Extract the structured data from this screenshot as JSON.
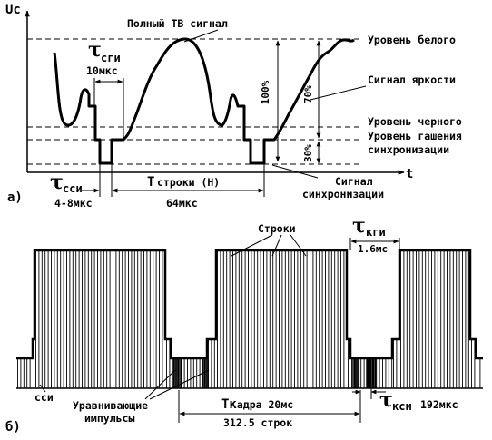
{
  "panel_a": {
    "marker": "а)",
    "axis_y": "Uc",
    "axis_x": "t",
    "title": "Полный ТВ сигнал",
    "level_white": "Уровень белого",
    "brightness_signal": "Сигнал яркости",
    "level_black": "Уровень черного",
    "level_blanking_1": "Уровень гашения",
    "level_blanking_2": "синхронизации",
    "sync_signal_1": "Сигнал",
    "sync_signal_2": "синхронизации",
    "pct_100": "100%",
    "pct_70": "70%",
    "pct_30": "30%",
    "tau_sgi": "τ",
    "tau_sgi_sub": "сги",
    "tau_sgi_value": "10мкс",
    "tau_ssi": "τ",
    "tau_ssi_sub": "сси",
    "tau_ssi_value": "4-8мкс",
    "t_line": "Т",
    "t_line_sub": "строки (Н)",
    "t_line_value": "64мкс"
  },
  "panel_b": {
    "marker": "б)",
    "lines_label": "Строки",
    "tau_kgi": "τ",
    "tau_kgi_sub": "кги",
    "tau_kgi_value": "1.6мс",
    "ssi_label": "сси",
    "equalizing_1": "Уравнивающие",
    "equalizing_2": "импульсы",
    "t_frame": "Тк",
    "t_frame_rest": "адра 20мс",
    "frame_lines": "312.5 строк",
    "tau_ksi": "τ",
    "tau_ksi_sub": "кси",
    "tau_ksi_value": "192мкс"
  },
  "icons": [
    "arrow-head-icon"
  ]
}
